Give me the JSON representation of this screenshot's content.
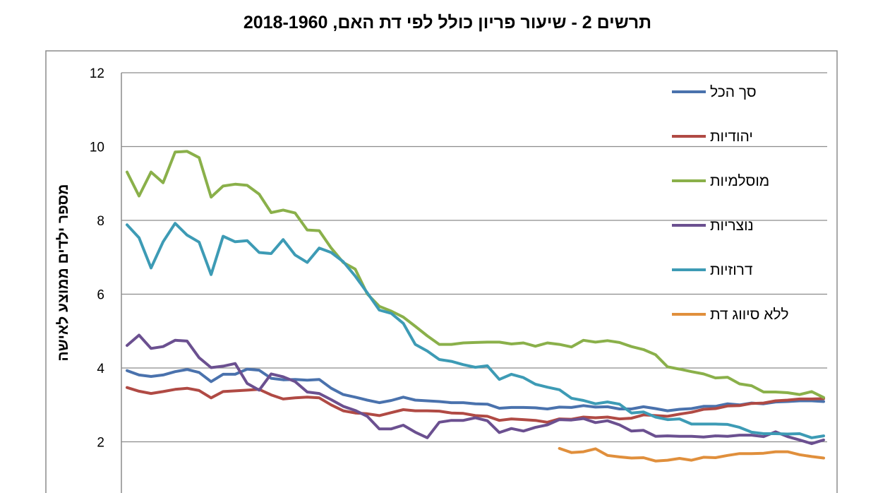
{
  "chart_data": {
    "type": "line",
    "title": "תרשים 2 - שיעור פריון כולל לפי דת האם, 2018-1960",
    "ylabel": "מספר ילדים ממוצע לאישה",
    "ylim": [
      0,
      12
    ],
    "yticks": [
      "2",
      "4",
      "6",
      "8",
      "10",
      "12"
    ],
    "grid": true,
    "legend_position": "top-right",
    "x": [
      1960,
      1961,
      1962,
      1963,
      1964,
      1965,
      1966,
      1967,
      1968,
      1969,
      1970,
      1971,
      1972,
      1973,
      1974,
      1975,
      1976,
      1977,
      1978,
      1979,
      1980,
      1981,
      1982,
      1983,
      1984,
      1985,
      1986,
      1987,
      1988,
      1989,
      1990,
      1991,
      1992,
      1993,
      1994,
      1995,
      1996,
      1997,
      1998,
      1999,
      2000,
      2001,
      2002,
      2003,
      2004,
      2005,
      2006,
      2007,
      2008,
      2009,
      2010,
      2011,
      2012,
      2013,
      2014,
      2015,
      2016,
      2017,
      2018
    ],
    "series": [
      {
        "name": "סך הכל",
        "color": "#4a72ad",
        "values": [
          3.93,
          3.81,
          3.77,
          3.81,
          3.9,
          3.96,
          3.88,
          3.63,
          3.83,
          3.83,
          3.97,
          3.94,
          3.72,
          3.68,
          3.69,
          3.67,
          3.69,
          3.45,
          3.28,
          3.21,
          3.13,
          3.06,
          3.12,
          3.21,
          3.13,
          3.11,
          3.09,
          3.06,
          3.06,
          3.03,
          3.02,
          2.91,
          2.93,
          2.93,
          2.92,
          2.89,
          2.94,
          2.93,
          2.98,
          2.94,
          2.95,
          2.89,
          2.89,
          2.95,
          2.9,
          2.84,
          2.88,
          2.9,
          2.96,
          2.96,
          3.03,
          3.0,
          3.05,
          3.03,
          3.08,
          3.09,
          3.11,
          3.11,
          3.09
        ]
      },
      {
        "name": "יהודיות",
        "color": "#b04a44",
        "values": [
          3.47,
          3.37,
          3.31,
          3.36,
          3.42,
          3.45,
          3.39,
          3.19,
          3.36,
          3.38,
          3.4,
          3.42,
          3.27,
          3.16,
          3.19,
          3.21,
          3.19,
          3.0,
          2.84,
          2.78,
          2.76,
          2.71,
          2.79,
          2.87,
          2.84,
          2.84,
          2.83,
          2.78,
          2.77,
          2.71,
          2.69,
          2.58,
          2.62,
          2.6,
          2.58,
          2.53,
          2.62,
          2.61,
          2.67,
          2.65,
          2.67,
          2.62,
          2.64,
          2.73,
          2.71,
          2.69,
          2.75,
          2.8,
          2.88,
          2.9,
          2.97,
          2.98,
          3.04,
          3.05,
          3.11,
          3.13,
          3.16,
          3.16,
          3.17
        ]
      },
      {
        "name": "מוסלמיות",
        "color": "#8ab04a",
        "values": [
          9.31,
          8.66,
          9.31,
          9.02,
          9.85,
          9.87,
          9.7,
          8.63,
          8.93,
          8.98,
          8.95,
          8.71,
          8.21,
          8.28,
          8.2,
          7.74,
          7.72,
          7.25,
          6.86,
          6.68,
          6.01,
          5.67,
          5.54,
          5.38,
          5.13,
          4.87,
          4.64,
          4.64,
          4.68,
          4.69,
          4.7,
          4.7,
          4.65,
          4.68,
          4.59,
          4.68,
          4.64,
          4.57,
          4.75,
          4.7,
          4.74,
          4.69,
          4.58,
          4.5,
          4.36,
          4.03,
          3.97,
          3.9,
          3.84,
          3.73,
          3.75,
          3.57,
          3.52,
          3.35,
          3.35,
          3.33,
          3.28,
          3.36,
          3.2
        ]
      },
      {
        "name": "נוצריות",
        "color": "#6b5090",
        "values": [
          4.61,
          4.89,
          4.53,
          4.58,
          4.75,
          4.73,
          4.28,
          4.01,
          4.05,
          4.12,
          3.58,
          3.4,
          3.84,
          3.76,
          3.63,
          3.35,
          3.31,
          3.14,
          2.96,
          2.85,
          2.69,
          2.35,
          2.35,
          2.45,
          2.26,
          2.11,
          2.53,
          2.58,
          2.58,
          2.65,
          2.57,
          2.25,
          2.36,
          2.29,
          2.39,
          2.46,
          2.6,
          2.59,
          2.63,
          2.52,
          2.57,
          2.46,
          2.29,
          2.31,
          2.15,
          2.16,
          2.15,
          2.15,
          2.13,
          2.16,
          2.15,
          2.18,
          2.18,
          2.14,
          2.27,
          2.14,
          2.05,
          1.95,
          2.05
        ]
      },
      {
        "name": "דרוזיות",
        "color": "#3d9bb5",
        "values": [
          7.88,
          7.53,
          6.71,
          7.42,
          7.92,
          7.6,
          7.41,
          6.53,
          7.57,
          7.42,
          7.45,
          7.13,
          7.1,
          7.48,
          7.06,
          6.86,
          7.25,
          7.13,
          6.88,
          6.49,
          6.04,
          5.57,
          5.48,
          5.21,
          4.64,
          4.46,
          4.23,
          4.18,
          4.09,
          4.02,
          4.06,
          3.69,
          3.83,
          3.74,
          3.56,
          3.48,
          3.41,
          3.18,
          3.12,
          3.03,
          3.08,
          3.02,
          2.78,
          2.81,
          2.67,
          2.6,
          2.62,
          2.48,
          2.48,
          2.48,
          2.47,
          2.39,
          2.26,
          2.22,
          2.22,
          2.21,
          2.22,
          2.11,
          2.16
        ]
      },
      {
        "name": "ללא סיווג דת",
        "color": "#e08f3c",
        "values": [
          null,
          null,
          null,
          null,
          null,
          null,
          null,
          null,
          null,
          null,
          null,
          null,
          null,
          null,
          null,
          null,
          null,
          null,
          null,
          null,
          null,
          null,
          null,
          null,
          null,
          null,
          null,
          null,
          null,
          null,
          null,
          null,
          null,
          null,
          null,
          null,
          1.82,
          1.71,
          1.73,
          1.81,
          1.63,
          1.59,
          1.56,
          1.57,
          1.48,
          1.5,
          1.55,
          1.5,
          1.58,
          1.57,
          1.63,
          1.68,
          1.68,
          1.69,
          1.73,
          1.73,
          1.65,
          1.6,
          1.56
        ]
      }
    ]
  }
}
